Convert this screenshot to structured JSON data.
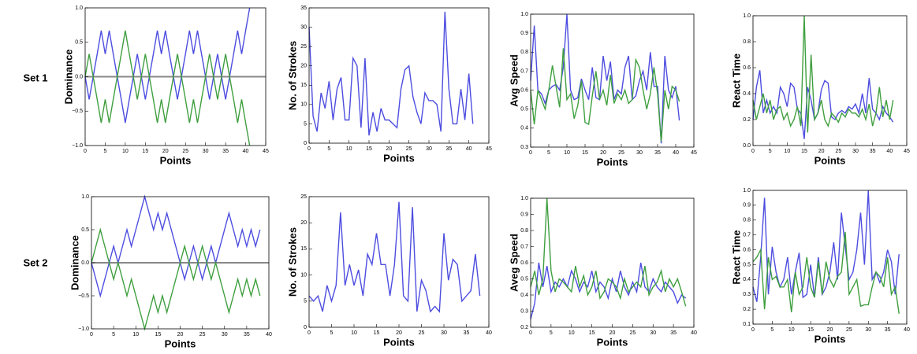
{
  "row_labels": [
    "Set 1",
    "Set 2"
  ],
  "chart_data": [
    {
      "type": "line",
      "ylabel": "Dominance",
      "xlabel": "Points",
      "x": [
        0,
        1,
        2,
        3,
        4,
        5,
        6,
        7,
        8,
        9,
        10,
        11,
        12,
        13,
        14,
        15,
        16,
        17,
        18,
        19,
        20,
        21,
        22,
        23,
        24,
        25,
        26,
        27,
        28,
        29,
        30,
        31,
        32,
        33,
        34,
        35,
        36,
        37,
        38,
        39,
        40,
        41
      ],
      "series": [
        {
          "color": "#4d4de0",
          "values": [
            0,
            -0.33,
            0,
            0.33,
            0.67,
            0.33,
            0.67,
            0.33,
            0,
            -0.33,
            -0.67,
            -0.33,
            0,
            0.33,
            0,
            -0.33,
            0,
            0.33,
            0.67,
            0.33,
            0.67,
            0.33,
            0,
            -0.33,
            0,
            0.33,
            0.67,
            0.33,
            0.67,
            0.33,
            0,
            -0.33,
            0,
            0.33,
            0,
            -0.33,
            0,
            0.33,
            0.67,
            0.33,
            0.67,
            1.0
          ]
        },
        {
          "color": "#3f9f3f",
          "values": [
            0,
            0.33,
            0,
            -0.33,
            -0.67,
            -0.33,
            -0.67,
            -0.33,
            0,
            0.33,
            0.67,
            0.33,
            0,
            -0.33,
            0,
            0.33,
            0,
            -0.33,
            -0.67,
            -0.33,
            -0.67,
            -0.33,
            0,
            0.33,
            0,
            -0.33,
            -0.67,
            -0.33,
            -0.67,
            -0.33,
            0,
            0.33,
            0,
            -0.33,
            0,
            0.33,
            0,
            -0.33,
            -0.67,
            -0.33,
            -0.67,
            -1.0
          ]
        }
      ],
      "hline": 0,
      "xlim": [
        0,
        45
      ],
      "xticks": [
        0,
        5,
        10,
        15,
        20,
        25,
        30,
        35,
        40,
        45
      ],
      "ylim": [
        -1,
        1
      ],
      "yticks": [
        {
          "value": -1,
          "label": "−1.0"
        },
        {
          "value": -0.5,
          "label": "−0.5"
        },
        {
          "value": 0,
          "label": "0.0"
        },
        0.5,
        {
          "value": 1,
          "label": "1.0"
        }
      ]
    },
    {
      "type": "line",
      "ylabel": "No. of Strokes",
      "xlabel": "Points",
      "x": [
        0,
        1,
        2,
        3,
        4,
        5,
        6,
        7,
        8,
        9,
        10,
        11,
        12,
        13,
        14,
        15,
        16,
        17,
        18,
        19,
        20,
        21,
        22,
        23,
        24,
        25,
        26,
        27,
        28,
        29,
        30,
        31,
        32,
        33,
        34,
        35,
        36,
        37,
        38,
        39,
        40,
        41
      ],
      "series": [
        {
          "color": "#4d4de0",
          "values": [
            30,
            7,
            3,
            13,
            9,
            16,
            6,
            14,
            17,
            6,
            6,
            22,
            20,
            4,
            22,
            2,
            8,
            3,
            9,
            6,
            6,
            5,
            4,
            14,
            19,
            20,
            12,
            8,
            5,
            13,
            11,
            11,
            10,
            3,
            34,
            14,
            5,
            5,
            14,
            6,
            18,
            5
          ]
        }
      ],
      "xlim": [
        0,
        45
      ],
      "xticks": [
        0,
        5,
        10,
        15,
        20,
        25,
        30,
        35,
        40,
        45
      ],
      "ylim": [
        0,
        35
      ],
      "yticks": [
        0,
        5,
        10,
        15,
        20,
        25,
        30,
        35
      ]
    },
    {
      "type": "line",
      "ylabel": "Avg Speed",
      "xlabel": "Points",
      "x": [
        0,
        1,
        2,
        3,
        4,
        5,
        6,
        7,
        8,
        9,
        10,
        11,
        12,
        13,
        14,
        15,
        16,
        17,
        18,
        19,
        20,
        21,
        22,
        23,
        24,
        25,
        26,
        27,
        28,
        29,
        30,
        31,
        32,
        33,
        34,
        35,
        36,
        37,
        38,
        39,
        40,
        41
      ],
      "series": [
        {
          "color": "#4d4de0",
          "values": [
            0.65,
            0.94,
            0.6,
            0.58,
            0.53,
            0.6,
            0.62,
            0.63,
            0.6,
            0.72,
            1.0,
            0.6,
            0.55,
            0.56,
            0.66,
            0.6,
            0.55,
            0.72,
            0.56,
            0.55,
            0.78,
            0.65,
            0.75,
            0.55,
            0.6,
            0.58,
            0.72,
            0.78,
            0.55,
            0.57,
            0.65,
            0.7,
            0.6,
            0.8,
            0.62,
            0.62,
            0.32,
            0.78,
            0.6,
            0.56,
            0.62,
            0.44
          ]
        },
        {
          "color": "#3f9f3f",
          "values": [
            0.6,
            0.42,
            0.6,
            0.55,
            0.5,
            0.6,
            0.73,
            0.62,
            0.51,
            0.82,
            0.55,
            0.58,
            0.45,
            0.52,
            0.65,
            0.43,
            0.42,
            0.57,
            0.7,
            0.55,
            0.6,
            0.52,
            0.68,
            0.53,
            0.58,
            0.55,
            0.6,
            0.53,
            0.55,
            0.76,
            0.72,
            0.6,
            0.5,
            0.58,
            0.72,
            0.58,
            0.33,
            0.6,
            0.5,
            0.62,
            0.6,
            0.54
          ]
        }
      ],
      "xlim": [
        0,
        45
      ],
      "xticks": [
        0,
        5,
        10,
        15,
        20,
        25,
        30,
        35,
        40,
        45
      ],
      "ylim": [
        0.3,
        1.0
      ],
      "yticks": [
        0.3,
        0.4,
        0.5,
        0.6,
        0.7,
        0.8,
        0.9,
        {
          "value": 1.0,
          "label": "1.0"
        }
      ]
    },
    {
      "type": "line",
      "ylabel": "React Time",
      "xlabel": "Points",
      "x": [
        0,
        1,
        2,
        3,
        4,
        5,
        6,
        7,
        8,
        9,
        10,
        11,
        12,
        13,
        14,
        15,
        16,
        17,
        18,
        19,
        20,
        21,
        22,
        23,
        24,
        25,
        26,
        27,
        28,
        29,
        30,
        31,
        32,
        33,
        34,
        35,
        36,
        37,
        38,
        39,
        40,
        41
      ],
      "series": [
        {
          "color": "#4d4de0",
          "values": [
            0.2,
            0.45,
            0.58,
            0.25,
            0.35,
            0.25,
            0.3,
            0.25,
            0.45,
            0.4,
            0.3,
            0.48,
            0.45,
            0.28,
            0.25,
            0.05,
            0.45,
            0.35,
            0.2,
            0.25,
            0.43,
            0.5,
            0.48,
            0.22,
            0.2,
            0.25,
            0.27,
            0.25,
            0.3,
            0.28,
            0.32,
            0.25,
            0.4,
            0.25,
            0.52,
            0.28,
            0.25,
            0.2,
            0.3,
            0.25,
            0.22,
            0.18
          ]
        },
        {
          "color": "#3f9f3f",
          "values": [
            0.35,
            0.2,
            0.3,
            0.4,
            0.25,
            0.35,
            0.2,
            0.28,
            0.3,
            0.2,
            0.25,
            0.15,
            0.2,
            0.3,
            0.15,
            1.0,
            0.1,
            0.7,
            0.2,
            0.25,
            0.35,
            0.2,
            0.15,
            0.25,
            0.22,
            0.18,
            0.25,
            0.22,
            0.28,
            0.25,
            0.25,
            0.22,
            0.28,
            0.2,
            0.32,
            0.15,
            0.25,
            0.45,
            0.22,
            0.35,
            0.2,
            0.35
          ]
        }
      ],
      "xlim": [
        0,
        45
      ],
      "xticks": [
        0,
        5,
        10,
        15,
        20,
        25,
        30,
        35,
        40,
        45
      ],
      "ylim": [
        0,
        1
      ],
      "yticks": [
        {
          "value": 0,
          "label": "0.0"
        },
        0.2,
        0.4,
        0.6,
        0.8,
        {
          "value": 1,
          "label": "1.0"
        }
      ]
    },
    {
      "type": "line",
      "ylabel": "Dominance",
      "xlabel": "Points",
      "x": [
        0,
        1,
        2,
        3,
        4,
        5,
        6,
        7,
        8,
        9,
        10,
        11,
        12,
        13,
        14,
        15,
        16,
        17,
        18,
        19,
        20,
        21,
        22,
        23,
        24,
        25,
        26,
        27,
        28,
        29,
        30,
        31,
        32,
        33,
        34,
        35,
        36,
        37,
        38
      ],
      "series": [
        {
          "color": "#4d4de0",
          "values": [
            0,
            -0.25,
            -0.5,
            -0.25,
            0,
            0.25,
            0,
            0.25,
            0.5,
            0.25,
            0.5,
            0.75,
            1.0,
            0.75,
            0.5,
            0.75,
            0.5,
            0.75,
            0.5,
            0.25,
            0,
            -0.25,
            0,
            0.25,
            0,
            -0.25,
            0,
            0.25,
            0,
            0.25,
            0.5,
            0.75,
            0.5,
            0.25,
            0.5,
            0.25,
            0.5,
            0.25,
            0.5
          ]
        },
        {
          "color": "#3f9f3f",
          "values": [
            0,
            0.25,
            0.5,
            0.25,
            0,
            -0.25,
            0,
            -0.25,
            -0.5,
            -0.25,
            -0.5,
            -0.75,
            -1.0,
            -0.75,
            -0.5,
            -0.75,
            -0.5,
            -0.75,
            -0.5,
            -0.25,
            0,
            0.25,
            0,
            -0.25,
            0,
            0.25,
            0,
            -0.25,
            0,
            -0.25,
            -0.5,
            -0.75,
            -0.5,
            -0.25,
            -0.5,
            -0.25,
            -0.5,
            -0.25,
            -0.5
          ]
        }
      ],
      "hline": 0,
      "xlim": [
        0,
        40
      ],
      "xticks": [
        0,
        5,
        10,
        15,
        20,
        25,
        30,
        35,
        40
      ],
      "ylim": [
        -1,
        1
      ],
      "yticks": [
        {
          "value": -1,
          "label": "−1.0"
        },
        {
          "value": -0.5,
          "label": "−0.5"
        },
        {
          "value": 0,
          "label": "0.0"
        },
        0.5,
        {
          "value": 1,
          "label": "1.0"
        }
      ]
    },
    {
      "type": "line",
      "ylabel": "No. of Strokes",
      "xlabel": "Points",
      "x": [
        0,
        1,
        2,
        3,
        4,
        5,
        6,
        7,
        8,
        9,
        10,
        11,
        12,
        13,
        14,
        15,
        16,
        17,
        18,
        19,
        20,
        21,
        22,
        23,
        24,
        25,
        26,
        27,
        28,
        29,
        30,
        31,
        32,
        33,
        34,
        35,
        36,
        37,
        38
      ],
      "series": [
        {
          "color": "#4d4de0",
          "values": [
            6,
            5,
            6,
            3,
            8,
            5,
            8,
            22,
            8,
            12,
            8,
            11,
            6,
            14,
            12,
            18,
            12,
            12,
            6,
            12,
            24,
            6,
            5,
            23,
            3,
            9,
            7,
            3,
            4,
            3,
            18,
            9,
            13,
            12,
            5,
            6,
            7,
            14,
            6
          ]
        }
      ],
      "xlim": [
        0,
        40
      ],
      "xticks": [
        0,
        5,
        10,
        15,
        20,
        25,
        30,
        35,
        40
      ],
      "ylim": [
        0,
        25
      ],
      "yticks": [
        0,
        5,
        10,
        15,
        20,
        25
      ]
    },
    {
      "type": "line",
      "ylabel": "Aveg Speed",
      "xlabel": "Points",
      "x": [
        0,
        1,
        2,
        3,
        4,
        5,
        6,
        7,
        8,
        9,
        10,
        11,
        12,
        13,
        14,
        15,
        16,
        17,
        18,
        19,
        20,
        21,
        22,
        23,
        24,
        25,
        26,
        27,
        28,
        29,
        30,
        31,
        32,
        33,
        34,
        35,
        36,
        37,
        38
      ],
      "series": [
        {
          "color": "#4d4de0",
          "values": [
            0.25,
            0.35,
            0.6,
            0.45,
            0.58,
            0.42,
            0.48,
            0.45,
            0.5,
            0.45,
            0.55,
            0.5,
            0.42,
            0.48,
            0.45,
            0.55,
            0.42,
            0.48,
            0.45,
            0.38,
            0.5,
            0.42,
            0.55,
            0.45,
            0.4,
            0.48,
            0.42,
            0.6,
            0.45,
            0.42,
            0.5,
            0.45,
            0.42,
            0.48,
            0.45,
            0.42,
            0.35,
            0.4,
            0.38
          ]
        },
        {
          "color": "#3f9f3f",
          "values": [
            0.45,
            0.55,
            0.4,
            0.5,
            1.0,
            0.55,
            0.42,
            0.5,
            0.48,
            0.45,
            0.42,
            0.58,
            0.45,
            0.52,
            0.4,
            0.45,
            0.55,
            0.38,
            0.42,
            0.5,
            0.48,
            0.45,
            0.38,
            0.5,
            0.42,
            0.45,
            0.48,
            0.45,
            0.58,
            0.4,
            0.45,
            0.48,
            0.55,
            0.42,
            0.5,
            0.45,
            0.5,
            0.42,
            0.33
          ]
        }
      ],
      "xlim": [
        0,
        40
      ],
      "xticks": [
        0,
        5,
        10,
        15,
        20,
        25,
        30,
        35,
        40
      ],
      "ylim": [
        0.2,
        1.0
      ],
      "yticks": [
        0.2,
        0.3,
        0.4,
        0.5,
        0.6,
        0.7,
        0.8,
        0.9,
        {
          "value": 1.0,
          "label": "1.0"
        }
      ]
    },
    {
      "type": "line",
      "ylabel": "React Time",
      "xlabel": "Points",
      "x": [
        0,
        1,
        2,
        3,
        4,
        5,
        6,
        7,
        8,
        9,
        10,
        11,
        12,
        13,
        14,
        15,
        16,
        17,
        18,
        19,
        20,
        21,
        22,
        23,
        24,
        25,
        26,
        27,
        28,
        29,
        30,
        31,
        32,
        33,
        34,
        35,
        36,
        37,
        38
      ],
      "series": [
        {
          "color": "#4d4de0",
          "values": [
            0.35,
            0.25,
            0.55,
            0.95,
            0.3,
            0.62,
            0.45,
            0.35,
            0.4,
            0.55,
            0.3,
            0.45,
            0.58,
            0.28,
            0.3,
            0.5,
            0.28,
            0.55,
            0.3,
            0.35,
            0.45,
            0.65,
            0.4,
            0.85,
            0.62,
            0.4,
            0.45,
            0.6,
            0.85,
            0.5,
            1.0,
            0.4,
            0.45,
            0.38,
            0.45,
            0.6,
            0.52,
            0.3,
            0.57
          ]
        },
        {
          "color": "#3f9f3f",
          "values": [
            0.52,
            0.55,
            0.6,
            0.2,
            0.55,
            0.4,
            0.42,
            0.35,
            0.35,
            0.4,
            0.18,
            0.45,
            0.3,
            0.35,
            0.55,
            0.35,
            0.28,
            0.52,
            0.3,
            0.52,
            0.4,
            0.35,
            0.42,
            0.45,
            0.72,
            0.3,
            0.35,
            0.4,
            0.22,
            0.23,
            0.23,
            0.35,
            0.45,
            0.42,
            0.35,
            0.55,
            0.3,
            0.35,
            0.17
          ]
        }
      ],
      "xlim": [
        0,
        40
      ],
      "xticks": [
        0,
        5,
        10,
        15,
        20,
        25,
        30,
        35,
        40
      ],
      "ylim": [
        0.1,
        1.0
      ],
      "yticks": [
        0.1,
        0.2,
        0.3,
        0.4,
        0.5,
        0.6,
        0.7,
        0.8,
        0.9,
        {
          "value": 1.0,
          "label": "1.0"
        }
      ]
    }
  ]
}
